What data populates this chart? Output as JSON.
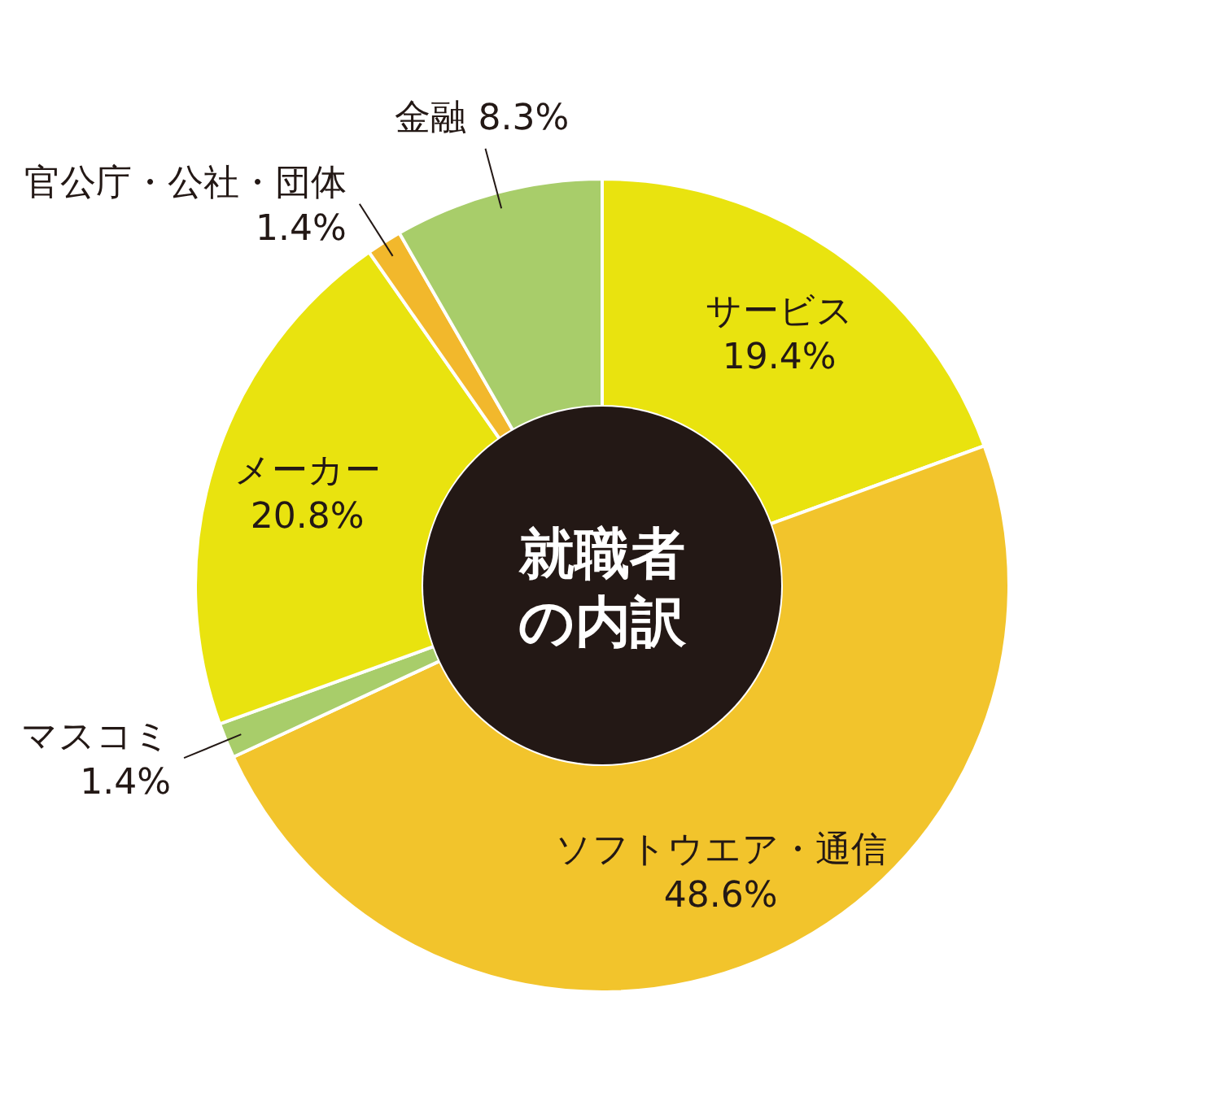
{
  "chart_data": {
    "type": "donut",
    "title": "就職者の内訳",
    "categories": [
      "サービス",
      "ソフトウエア・通信",
      "マスコミ",
      "メーカー",
      "官公庁・公社・団体",
      "金融"
    ],
    "values": [
      19.4,
      48.6,
      1.4,
      20.8,
      1.4,
      8.3
    ],
    "value_labels": [
      "19.4%",
      "48.6%",
      "1.4%",
      "20.8%",
      "1.4%",
      "8.3%"
    ],
    "colors": [
      "#e9e30f",
      "#f2c42c",
      "#a8cd6a",
      "#e9e30f",
      "#f2b82c",
      "#a8cd6a"
    ],
    "legend": false
  }
}
